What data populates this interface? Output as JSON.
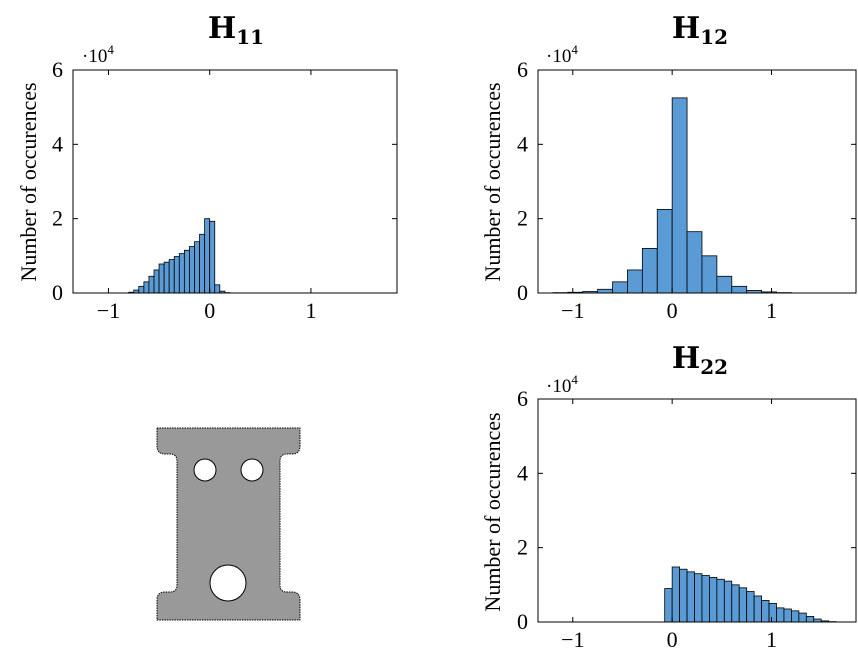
{
  "figure": {
    "shape_fill": "#999999",
    "bar_fill": "#5b9bd5",
    "bar_stroke": "#000000"
  },
  "chart_data": [
    {
      "type": "bar",
      "title": "H",
      "title_sub": "11",
      "ylabel": "Number of occurences",
      "y_scale": "·10",
      "y_scale_exp": "4",
      "xlim": [
        -1.35,
        1.85
      ],
      "ylim": [
        0,
        6
      ],
      "xticks": [
        -1,
        0,
        1
      ],
      "xtick_labels": [
        "−1",
        "0",
        "1"
      ],
      "yticks": [
        0,
        2,
        4,
        6
      ],
      "ytick_labels": [
        "0",
        "2",
        "4",
        "6"
      ],
      "bin_width": 0.05,
      "series": [
        {
          "bins": [
            [
              -0.8,
              0.02
            ],
            [
              -0.75,
              0.08
            ],
            [
              -0.7,
              0.18
            ],
            [
              -0.65,
              0.3
            ],
            [
              -0.6,
              0.45
            ],
            [
              -0.55,
              0.62
            ],
            [
              -0.5,
              0.78
            ],
            [
              -0.45,
              0.83
            ],
            [
              -0.4,
              0.9
            ],
            [
              -0.35,
              0.98
            ],
            [
              -0.3,
              1.06
            ],
            [
              -0.25,
              1.15
            ],
            [
              -0.2,
              1.25
            ],
            [
              -0.15,
              1.38
            ],
            [
              -0.1,
              1.58
            ],
            [
              -0.05,
              2.0
            ],
            [
              0.0,
              1.93
            ],
            [
              0.05,
              0.22
            ],
            [
              0.1,
              0.05
            ],
            [
              0.15,
              0.01
            ]
          ]
        }
      ]
    },
    {
      "type": "bar",
      "title": "H",
      "title_sub": "12",
      "ylabel": "Number of occurences",
      "y_scale": "·10",
      "y_scale_exp": "4",
      "xlim": [
        -1.35,
        1.85
      ],
      "ylim": [
        0,
        6
      ],
      "xticks": [
        -1,
        0,
        1
      ],
      "xtick_labels": [
        "−1",
        "0",
        "1"
      ],
      "yticks": [
        0,
        2,
        4,
        6
      ],
      "ytick_labels": [
        "0",
        "2",
        "4",
        "6"
      ],
      "bin_width": 0.15,
      "series": [
        {
          "bins": [
            [
              -1.2,
              0.01
            ],
            [
              -1.05,
              0.02
            ],
            [
              -0.9,
              0.04
            ],
            [
              -0.75,
              0.1
            ],
            [
              -0.6,
              0.3
            ],
            [
              -0.45,
              0.62
            ],
            [
              -0.3,
              1.2
            ],
            [
              -0.15,
              2.25
            ],
            [
              0.0,
              5.25
            ],
            [
              0.15,
              1.65
            ],
            [
              0.3,
              1.0
            ],
            [
              0.45,
              0.45
            ],
            [
              0.6,
              0.18
            ],
            [
              0.75,
              0.07
            ],
            [
              0.9,
              0.03
            ],
            [
              1.05,
              0.01
            ]
          ]
        }
      ]
    },
    {
      "type": "bar",
      "title": "H",
      "title_sub": "22",
      "ylabel": "Number of occurences",
      "y_scale": "·10",
      "y_scale_exp": "4",
      "xlim": [
        -1.35,
        1.85
      ],
      "ylim": [
        0,
        6
      ],
      "xticks": [
        -1,
        0,
        1
      ],
      "xtick_labels": [
        "−1",
        "0",
        "1"
      ],
      "yticks": [
        0,
        2,
        4,
        6
      ],
      "ytick_labels": [
        "0",
        "2",
        "4",
        "6"
      ],
      "bin_width": 0.075,
      "series": [
        {
          "bins": [
            [
              -0.075,
              0.9
            ],
            [
              0.0,
              1.48
            ],
            [
              0.075,
              1.42
            ],
            [
              0.15,
              1.35
            ],
            [
              0.225,
              1.3
            ],
            [
              0.3,
              1.25
            ],
            [
              0.375,
              1.2
            ],
            [
              0.45,
              1.15
            ],
            [
              0.525,
              1.1
            ],
            [
              0.6,
              1.0
            ],
            [
              0.675,
              0.92
            ],
            [
              0.75,
              0.82
            ],
            [
              0.825,
              0.7
            ],
            [
              0.9,
              0.58
            ],
            [
              0.975,
              0.5
            ],
            [
              1.05,
              0.38
            ],
            [
              1.125,
              0.35
            ],
            [
              1.2,
              0.3
            ],
            [
              1.275,
              0.24
            ],
            [
              1.35,
              0.15
            ],
            [
              1.425,
              0.08
            ],
            [
              1.5,
              0.03
            ],
            [
              1.575,
              0.01
            ]
          ]
        }
      ]
    }
  ]
}
